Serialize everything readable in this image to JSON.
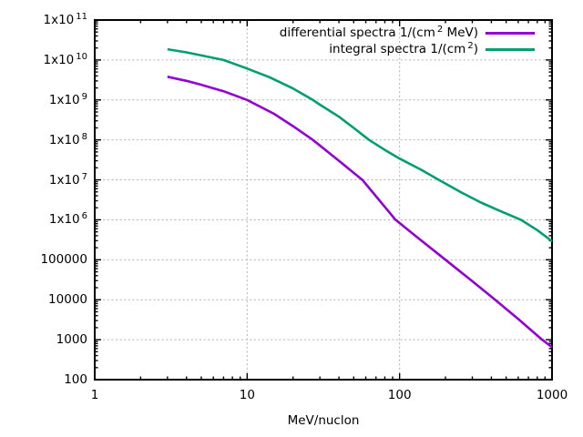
{
  "chart_data": {
    "type": "line",
    "title": "",
    "xlabel": "MeV/nuclon",
    "ylabel": "",
    "x_scale": "log",
    "y_scale": "log",
    "xlim": [
      1,
      1000
    ],
    "ylim": [
      100,
      100000000000.0
    ],
    "grid": "major, dotted gray",
    "legend_position": "top-right-inside",
    "x_ticks": [
      {
        "value": 1,
        "label": "1"
      },
      {
        "value": 10,
        "label": "10"
      },
      {
        "value": 100,
        "label": "100"
      },
      {
        "value": 1000,
        "label": "1000"
      }
    ],
    "y_ticks": [
      {
        "value": 100000000000.0,
        "pre": "1x10",
        "sup": "11"
      },
      {
        "value": 10000000000.0,
        "pre": "1x10",
        "sup": "10"
      },
      {
        "value": 1000000000.0,
        "pre": "1x10",
        "sup": "9"
      },
      {
        "value": 100000000.0,
        "pre": "1x10",
        "sup": "8"
      },
      {
        "value": 10000000.0,
        "pre": "1x10",
        "sup": "7"
      },
      {
        "value": 1000000.0,
        "pre": "1x10",
        "sup": "6"
      },
      {
        "value": 100000.0,
        "pre": "100000",
        "sup": ""
      },
      {
        "value": 10000.0,
        "pre": "10000",
        "sup": ""
      },
      {
        "value": 1000.0,
        "pre": "1000",
        "sup": ""
      },
      {
        "value": 100.0,
        "pre": "100",
        "sup": ""
      }
    ],
    "series": [
      {
        "name": "differential spectra 1/(cm^2 MeV)",
        "legend": {
          "pre": "differential spectra 1/(cm",
          "sup": "2",
          "post": " MeV)"
        },
        "color": "#9400d3",
        "points": [
          [
            3,
            3800000000.0
          ],
          [
            4,
            3000000000.0
          ],
          [
            5,
            2400000000.0
          ],
          [
            7,
            1650000000.0
          ],
          [
            10,
            1000000000.0
          ],
          [
            15,
            450000000.0
          ],
          [
            20,
            220000000.0
          ],
          [
            27,
            100000000.0
          ],
          [
            40,
            30000000.0
          ],
          [
            57,
            10000000.0
          ],
          [
            70,
            3900000.0
          ],
          [
            80,
            2100000.0
          ],
          [
            94,
            1000000.0
          ],
          [
            130,
            370000.0
          ],
          [
            200,
            100000.0
          ],
          [
            300,
            29000.0
          ],
          [
            423,
            10000.0
          ],
          [
            600,
            3300.0
          ],
          [
            861,
            1000.0
          ],
          [
            1000,
            650.0
          ]
        ]
      },
      {
        "name": "integral spectra 1/(cm^2)",
        "legend": {
          "pre": "integral spectra 1/(cm",
          "sup": "2",
          "post": ")"
        },
        "color": "#009e73",
        "points": [
          [
            3,
            18600000000.0
          ],
          [
            4,
            15500000000.0
          ],
          [
            5,
            13000000000.0
          ],
          [
            7,
            10000000000.0
          ],
          [
            10,
            6100000000.0
          ],
          [
            14,
            3700000000.0
          ],
          [
            20,
            1930000000.0
          ],
          [
            27,
            1000000000.0
          ],
          [
            30,
            760000000.0
          ],
          [
            40,
            380000000.0
          ],
          [
            50,
            200000000.0
          ],
          [
            63,
            100000000.0
          ],
          [
            80,
            56000000.0
          ],
          [
            100,
            34000000.0
          ],
          [
            140,
            17500000.0
          ],
          [
            181,
            10000000.0
          ],
          [
            250,
            5000000.0
          ],
          [
            342,
            2700000.0
          ],
          [
            450,
            1700000.0
          ],
          [
            625,
            1000000.0
          ],
          [
            800,
            550000.0
          ],
          [
            1000,
            290000.0
          ]
        ]
      }
    ],
    "colors": {
      "grid": "#b2b2b2",
      "axis": "#000000",
      "background": "#ffffff",
      "series_differential": "#9400d3",
      "series_integral": "#009e73"
    }
  }
}
